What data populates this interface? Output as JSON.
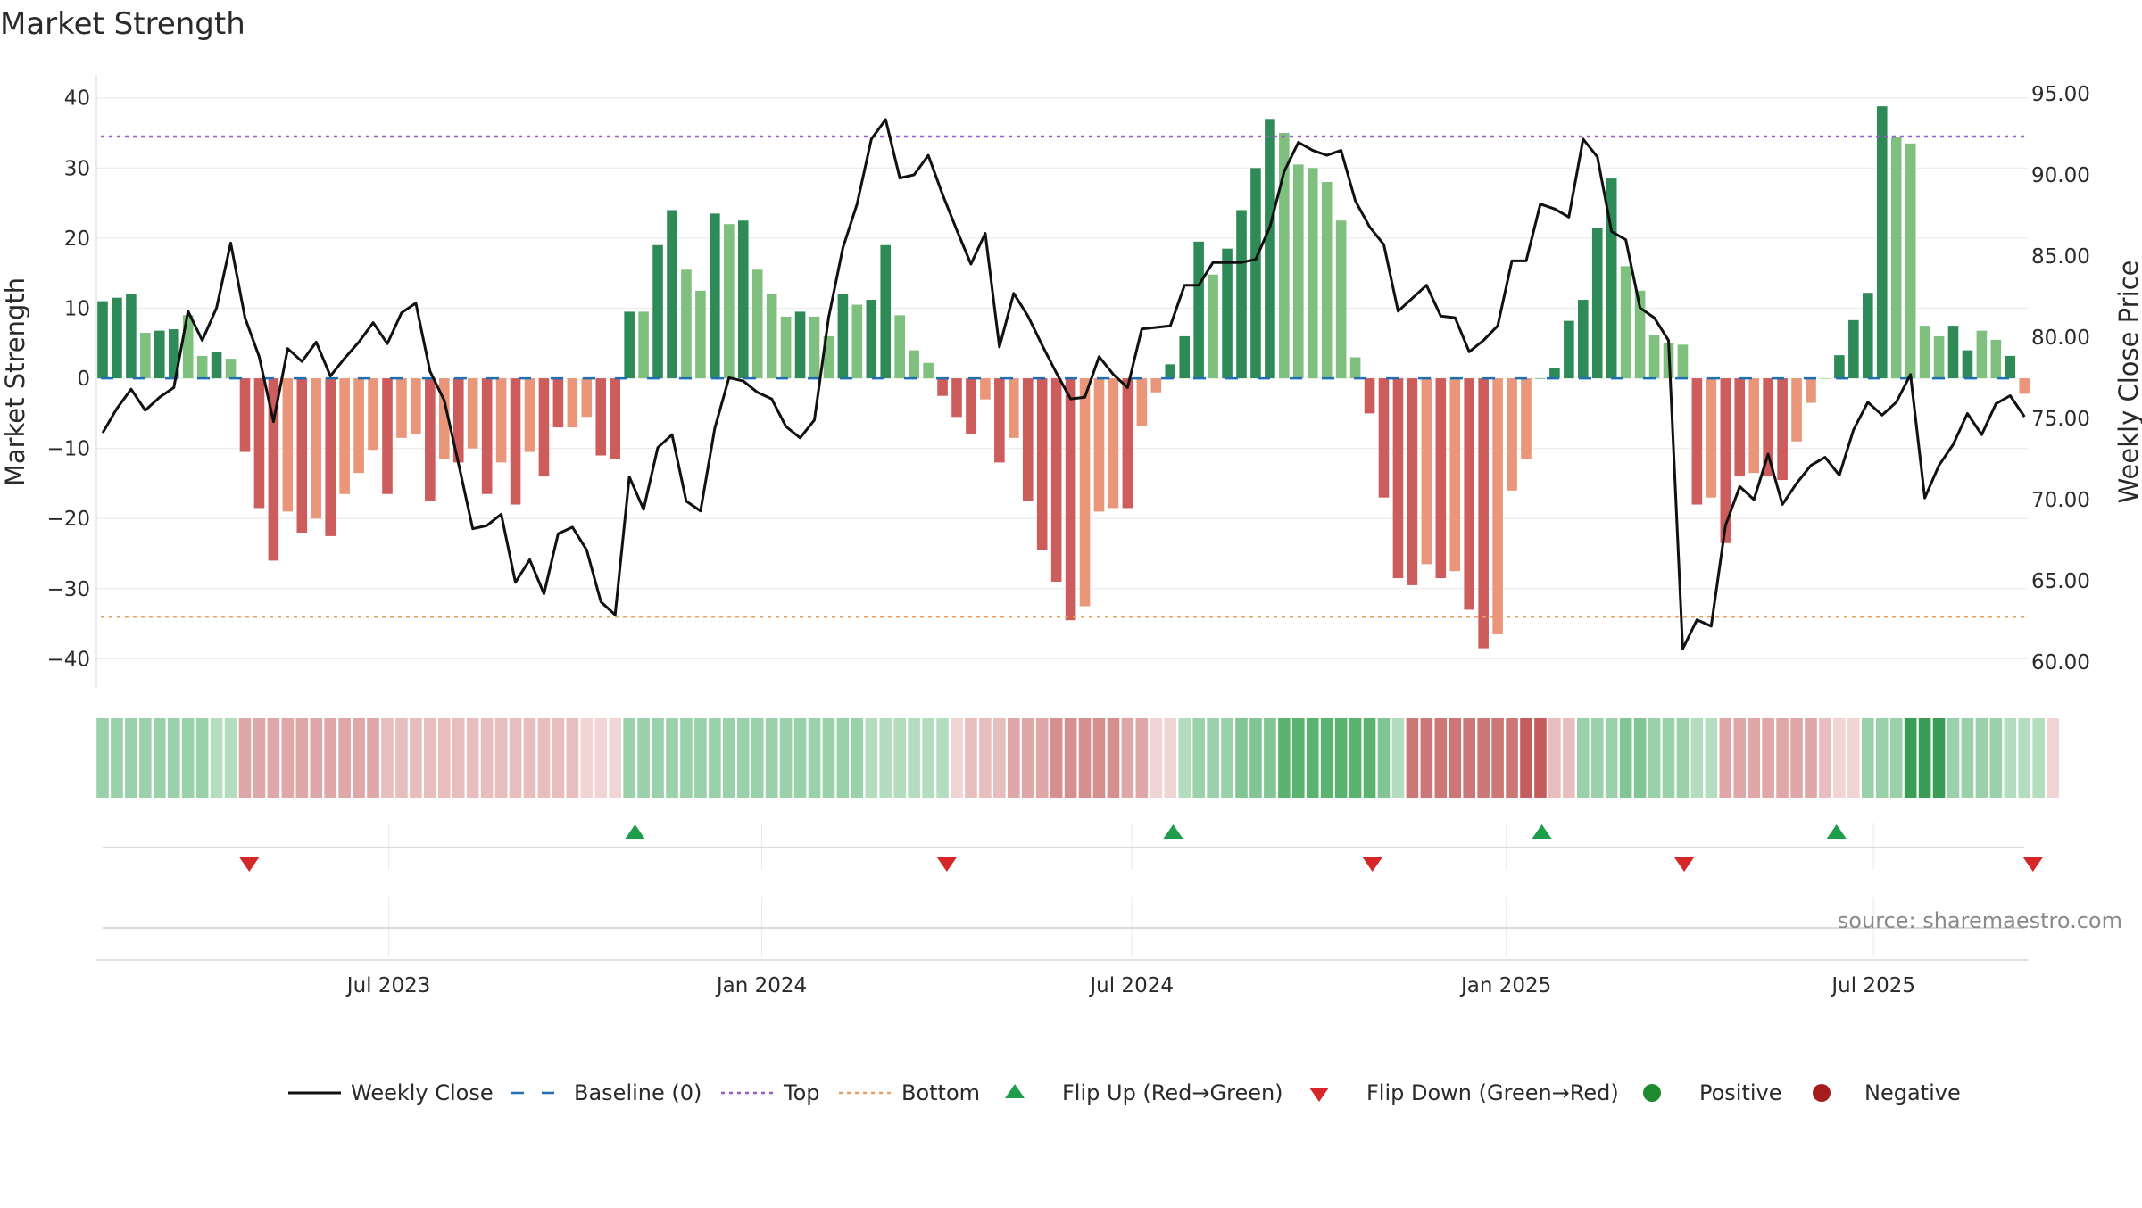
{
  "chart_data": {
    "type": "bar+line",
    "title": "Market Strength",
    "ylabel_left": "Market Strength",
    "ylabel_right": "Weekly Close Price",
    "source": "source: sharemaestro.com",
    "ylim_left": [
      -43,
      42
    ],
    "ylim_right": [
      58.9,
      95.6
    ],
    "left_ticks": [
      "40",
      "30",
      "20",
      "10",
      "0",
      "−10",
      "−20",
      "−30",
      "−40"
    ],
    "left_tick_values": [
      40,
      30,
      20,
      10,
      0,
      -10,
      -20,
      -30,
      -40
    ],
    "right_ticks": [
      "95.00",
      "90.00",
      "85.00",
      "80.00",
      "75.00",
      "70.00",
      "65.00",
      "60.00"
    ],
    "right_tick_values": [
      95,
      90,
      85,
      80,
      75,
      70,
      65,
      60
    ],
    "x_ticks": [
      {
        "label": "Jul 2023",
        "week": 20.1
      },
      {
        "label": "Jan 2024",
        "week": 46.3
      },
      {
        "label": "Jul 2024",
        "week": 72.3
      },
      {
        "label": "Jan 2025",
        "week": 98.6
      },
      {
        "label": "Jul 2025",
        "week": 124.4
      }
    ],
    "top_level": 34.5,
    "bottom_level": -34,
    "colors": {
      "pos_strong": "#2e8b57",
      "pos_weak": "#7fc07f",
      "neg_strong": "#cd5c5c",
      "neg_weak": "#e9967a",
      "price_line": "#111111",
      "baseline": "#1f6fb2",
      "top_line": "#9b59d0",
      "bottom_line": "#e8a060",
      "flip_up": "#1e9e4a",
      "flip_down": "#d62728",
      "positive_dot": "#1f8a2e",
      "negative_dot": "#a61c1c"
    },
    "strength": [
      11,
      11.5,
      12,
      6.5,
      6.8,
      7,
      9,
      3.2,
      3.8,
      2.8,
      -10.5,
      -18.5,
      -26,
      -19,
      -22,
      -20,
      -22.5,
      -16.5,
      -13.5,
      -10.2,
      -16.5,
      -8.5,
      -8,
      -17.5,
      -11.5,
      -12,
      -10,
      -16.5,
      -12,
      -18,
      -10.5,
      -14,
      -7,
      -7,
      -5.5,
      -11,
      -11.5,
      9.5,
      9.5,
      19,
      24,
      15.5,
      12.5,
      23.5,
      22,
      22.5,
      15.5,
      12,
      8.8,
      9.5,
      8.8,
      6,
      12,
      10.5,
      11.2,
      19,
      9,
      4,
      2.2,
      -2.5,
      -5.5,
      -8,
      -3,
      -12,
      -8.5,
      -17.5,
      -24.5,
      -29,
      -34.5,
      -32.5,
      -19,
      -18.5,
      -18.5,
      -6.8,
      -2,
      2,
      6,
      19.5,
      14.8,
      18.5,
      24,
      30,
      37,
      35,
      30.5,
      30,
      28,
      22.5,
      3,
      -5,
      -17,
      -28.5,
      -29.5,
      -26.5,
      -28.5,
      -27.5,
      -33,
      -38.5,
      -36.5,
      -16,
      -11.5,
      0,
      1.5,
      8.2,
      11.2,
      21.5,
      28.5,
      16,
      12.5,
      6.2,
      5,
      4.8,
      -18,
      -17,
      -23.5,
      -14,
      -13.5,
      -14,
      -14.5,
      -9,
      -3.5,
      0,
      3.3,
      8.3,
      12.2,
      38.8,
      34.5,
      33.5,
      7.5,
      6,
      7.5,
      4,
      6.8,
      5.5,
      3.2,
      -2.2
    ],
    "strength_shade": [
      "s",
      "s",
      "s",
      "w",
      "s",
      "s",
      "w",
      "w",
      "s",
      "w",
      "s",
      "s",
      "s",
      "w",
      "s",
      "w",
      "s",
      "w",
      "w",
      "w",
      "s",
      "w",
      "w",
      "s",
      "w",
      "s",
      "w",
      "s",
      "w",
      "s",
      "w",
      "s",
      "s",
      "w",
      "w",
      "s",
      "s",
      "s",
      "w",
      "s",
      "s",
      "w",
      "w",
      "s",
      "w",
      "s",
      "w",
      "w",
      "w",
      "s",
      "w",
      "w",
      "s",
      "w",
      "s",
      "s",
      "w",
      "w",
      "w",
      "s",
      "s",
      "s",
      "w",
      "s",
      "w",
      "s",
      "s",
      "s",
      "s",
      "w",
      "w",
      "w",
      "s",
      "w",
      "w",
      "s",
      "s",
      "s",
      "w",
      "s",
      "s",
      "s",
      "s",
      "w",
      "w",
      "w",
      "w",
      "w",
      "w",
      "s",
      "s",
      "s",
      "s",
      "w",
      "s",
      "w",
      "s",
      "s",
      "w",
      "w",
      "w",
      "s",
      "s",
      "s",
      "s",
      "s",
      "s",
      "w",
      "w",
      "w",
      "w",
      "w",
      "s",
      "w",
      "s",
      "s",
      "w",
      "s",
      "s",
      "w",
      "w",
      "w",
      "s",
      "s",
      "s",
      "s",
      "w",
      "w",
      "w",
      "w",
      "s",
      "s",
      "w",
      "w",
      "s"
    ],
    "price": [
      74.1,
      75.6,
      76.8,
      75.5,
      76.3,
      76.9,
      81.6,
      79.8,
      81.8,
      85.8,
      81.2,
      78.8,
      74.8,
      79.3,
      78.5,
      79.7,
      77.6,
      78.7,
      79.7,
      80.9,
      79.6,
      81.5,
      82.1,
      77.9,
      76.1,
      72.2,
      68.2,
      68.4,
      69.1,
      64.9,
      66.3,
      64.2,
      67.9,
      68.3,
      66.9,
      63.7,
      62.9,
      71.4,
      69.4,
      73.2,
      74,
      69.9,
      69.3,
      74.4,
      77.5,
      77.3,
      76.6,
      76.2,
      74.5,
      73.8,
      74.9,
      81.2,
      85.5,
      88.2,
      92.2,
      93.4,
      89.8,
      90,
      91.2,
      88.8,
      86.6,
      84.5,
      86.4,
      79.4,
      82.7,
      81.3,
      79.5,
      77.8,
      76.2,
      76.3,
      78.8,
      77.7,
      76.9,
      80.5,
      80.6,
      80.7,
      83.2,
      83.2,
      84.6,
      84.6,
      84.6,
      84.8,
      86.8,
      90.2,
      92,
      91.5,
      91.2,
      91.5,
      88.4,
      86.8,
      85.7,
      81.6,
      82.4,
      83.2,
      81.3,
      81.2,
      79.1,
      79.8,
      80.7,
      84.7,
      84.7,
      88.2,
      87.9,
      87.4,
      92.2,
      91.1,
      86.5,
      86,
      81.8,
      81.2,
      79.8,
      60.8,
      62.6,
      62.2,
      68.4,
      70.8,
      70,
      72.8,
      69.7,
      71,
      72.1,
      72.6,
      71.5,
      74.3,
      76,
      75.2,
      76,
      77.7,
      70.1,
      72.1,
      73.4,
      75.3,
      74,
      75.9,
      76.4,
      75.1
    ],
    "band_shade": [
      3,
      3,
      3,
      3,
      3,
      3,
      3,
      3,
      2,
      2,
      -3,
      -3,
      -3,
      -3,
      -3,
      -3,
      -3,
      -3,
      -3,
      -3,
      -2,
      -2,
      -2,
      -2,
      -2,
      -2,
      -2,
      -2,
      -2,
      -2,
      -2,
      -2,
      -2,
      -2,
      -1,
      -1,
      -1,
      3,
      3,
      3,
      3,
      3,
      3,
      3,
      3,
      3,
      3,
      3,
      3,
      3,
      3,
      3,
      3,
      3,
      2,
      2,
      2,
      2,
      2,
      2,
      -1,
      -2,
      -2,
      -2,
      -3,
      -3,
      -3,
      -4,
      -4,
      -4,
      -4,
      -4,
      -3,
      -3,
      -1,
      -1,
      2,
      3,
      3,
      3,
      4,
      4,
      4,
      5,
      5,
      5,
      5,
      5,
      5,
      5,
      4,
      2,
      -5,
      -5,
      -5,
      -5,
      -5,
      -5,
      -5,
      -5,
      -6,
      -6,
      -2,
      -2,
      3,
      3,
      3,
      4,
      4,
      3,
      3,
      3,
      2,
      2,
      -3,
      -3,
      -3,
      -3,
      -3,
      -3,
      -3,
      -2,
      -1,
      -1,
      3,
      3,
      3,
      6,
      6,
      6,
      3,
      3,
      3,
      3,
      2,
      2,
      2,
      -1
    ],
    "flips": [
      {
        "type": "down",
        "week": 10.3
      },
      {
        "type": "up",
        "week": 37.4
      },
      {
        "type": "down",
        "week": 59.3
      },
      {
        "type": "up",
        "week": 75.2
      },
      {
        "type": "down",
        "week": 89.2
      },
      {
        "type": "up",
        "week": 101.1
      },
      {
        "type": "down",
        "week": 111.1
      },
      {
        "type": "up",
        "week": 121.8
      },
      {
        "type": "down",
        "week": 135.6
      }
    ],
    "legend": [
      {
        "key": "line",
        "label": "Weekly Close"
      },
      {
        "key": "dash",
        "label": "Baseline (0)"
      },
      {
        "key": "top",
        "label": "Top"
      },
      {
        "key": "bottom",
        "label": "Bottom"
      },
      {
        "key": "up",
        "label": "Flip Up (Red→Green)"
      },
      {
        "key": "down",
        "label": "Flip Down (Green→Red)"
      },
      {
        "key": "pos",
        "label": "Positive"
      },
      {
        "key": "neg",
        "label": "Negative"
      }
    ]
  }
}
